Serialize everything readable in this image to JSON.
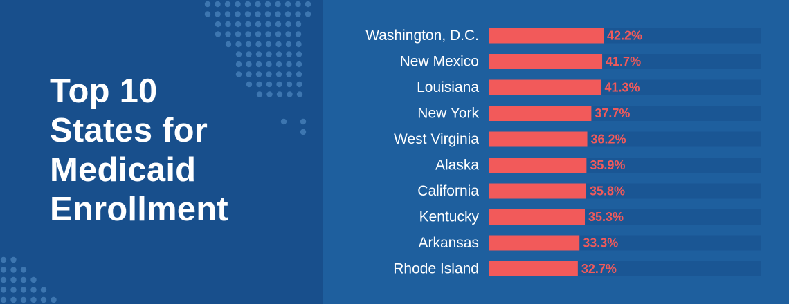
{
  "title_lines": [
    "Top 10",
    "States for",
    "Medicaid",
    "Enrollment"
  ],
  "colors": {
    "left_bg": "#184f8c",
    "right_bg": "#1e5f9e",
    "bar": "#f25a5a",
    "track": "#1a5694",
    "label": "#ffffff",
    "value_label": "#f25a5a"
  },
  "chart_data": {
    "type": "bar",
    "orientation": "horizontal",
    "categories": [
      "Washington, D.C.",
      "New Mexico",
      "Louisiana",
      "New York",
      "West Virginia",
      "Alaska",
      "California",
      "Kentucky",
      "Arkansas",
      "Rhode Island"
    ],
    "values": [
      42.2,
      41.7,
      41.3,
      37.7,
      36.2,
      35.9,
      35.8,
      35.3,
      33.3,
      32.7
    ],
    "value_labels": [
      "42.2%",
      "41.7%",
      "41.3%",
      "37.7%",
      "36.2%",
      "35.9%",
      "35.8%",
      "35.3%",
      "33.3%",
      "32.7%"
    ],
    "xlim": [
      0,
      100
    ],
    "grid": false,
    "legend": "none"
  }
}
